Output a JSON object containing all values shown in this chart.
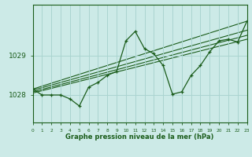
{
  "background_color": "#cceae7",
  "grid_color": "#aad4d0",
  "line_color": "#1a5c1a",
  "x_min": 0,
  "x_max": 23,
  "y_min": 1027.3,
  "y_max": 1030.3,
  "y_ticks": [
    1028,
    1029
  ],
  "x_ticks": [
    0,
    1,
    2,
    3,
    4,
    5,
    6,
    7,
    8,
    9,
    10,
    11,
    12,
    13,
    14,
    15,
    16,
    17,
    18,
    19,
    20,
    21,
    22,
    23
  ],
  "xlabel": "Graphe pression niveau de la mer (hPa)",
  "line1": [
    [
      0,
      1028.15
    ],
    [
      1,
      1028.0
    ],
    [
      2,
      1028.0
    ],
    [
      3,
      1028.0
    ],
    [
      4,
      1027.9
    ],
    [
      5,
      1027.72
    ],
    [
      6,
      1028.2
    ],
    [
      7,
      1028.32
    ],
    [
      8,
      1028.5
    ],
    [
      9,
      1028.6
    ],
    [
      10,
      1029.38
    ],
    [
      11,
      1029.62
    ],
    [
      12,
      1029.18
    ],
    [
      13,
      1029.05
    ],
    [
      14,
      1028.75
    ],
    [
      15,
      1028.02
    ],
    [
      16,
      1028.08
    ],
    [
      17,
      1028.5
    ],
    [
      18,
      1028.75
    ],
    [
      19,
      1029.1
    ],
    [
      20,
      1029.38
    ],
    [
      21,
      1029.42
    ],
    [
      22,
      1029.35
    ],
    [
      23,
      1029.88
    ]
  ],
  "trend_lines": [
    [
      [
        0,
        1028.15
      ],
      [
        23,
        1029.88
      ]
    ],
    [
      [
        0,
        1028.12
      ],
      [
        23,
        1029.65
      ]
    ],
    [
      [
        0,
        1028.08
      ],
      [
        23,
        1029.52
      ]
    ],
    [
      [
        0,
        1028.05
      ],
      [
        23,
        1029.42
      ]
    ]
  ]
}
